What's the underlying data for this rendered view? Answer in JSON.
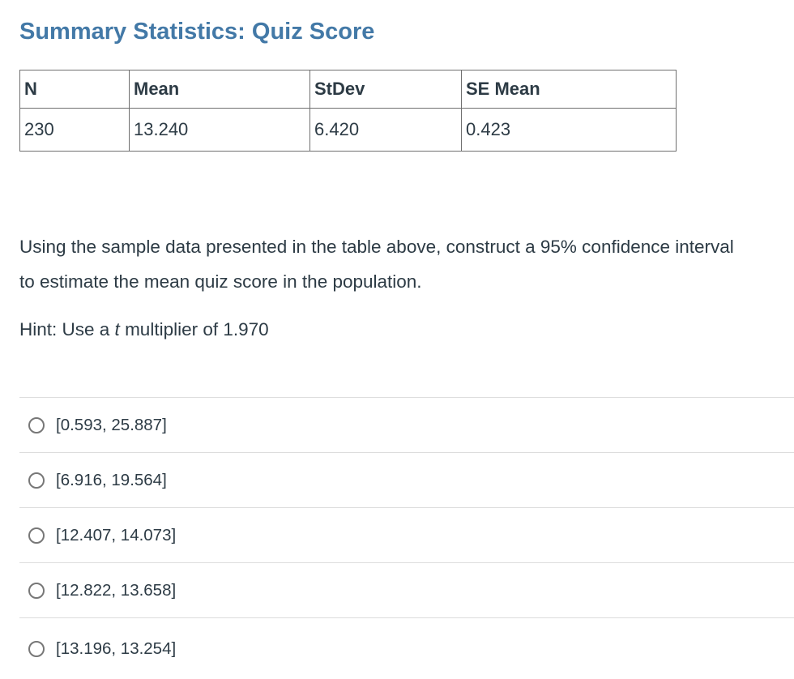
{
  "title": "Summary Statistics: Quiz Score",
  "stats_table": {
    "headers": [
      "N",
      "Mean",
      "StDev",
      "SE Mean"
    ],
    "row": [
      "230",
      "13.240",
      "6.420",
      "0.423"
    ]
  },
  "question": {
    "text": "Using the sample data presented in the table above, construct a 95% confidence interval to estimate the mean quiz score in the population.",
    "hint": {
      "prefix": "Hint: Use a ",
      "italic": "t",
      "suffix": " multiplier of 1.970"
    }
  },
  "options": [
    {
      "label": "[0.593, 25.887]",
      "selected": false
    },
    {
      "label": "[6.916, 19.564]",
      "selected": false
    },
    {
      "label": "[12.407, 14.073]",
      "selected": false
    },
    {
      "label": "[12.822, 13.658]",
      "selected": false
    },
    {
      "label": "[13.196, 13.254]",
      "selected": false
    }
  ],
  "colors": {
    "heading": "#4379a7",
    "body_text": "#2d3b45",
    "table_border": "#6f6f6f",
    "divider": "#dddddd",
    "radio_border": "#777777",
    "background": "#ffffff"
  }
}
